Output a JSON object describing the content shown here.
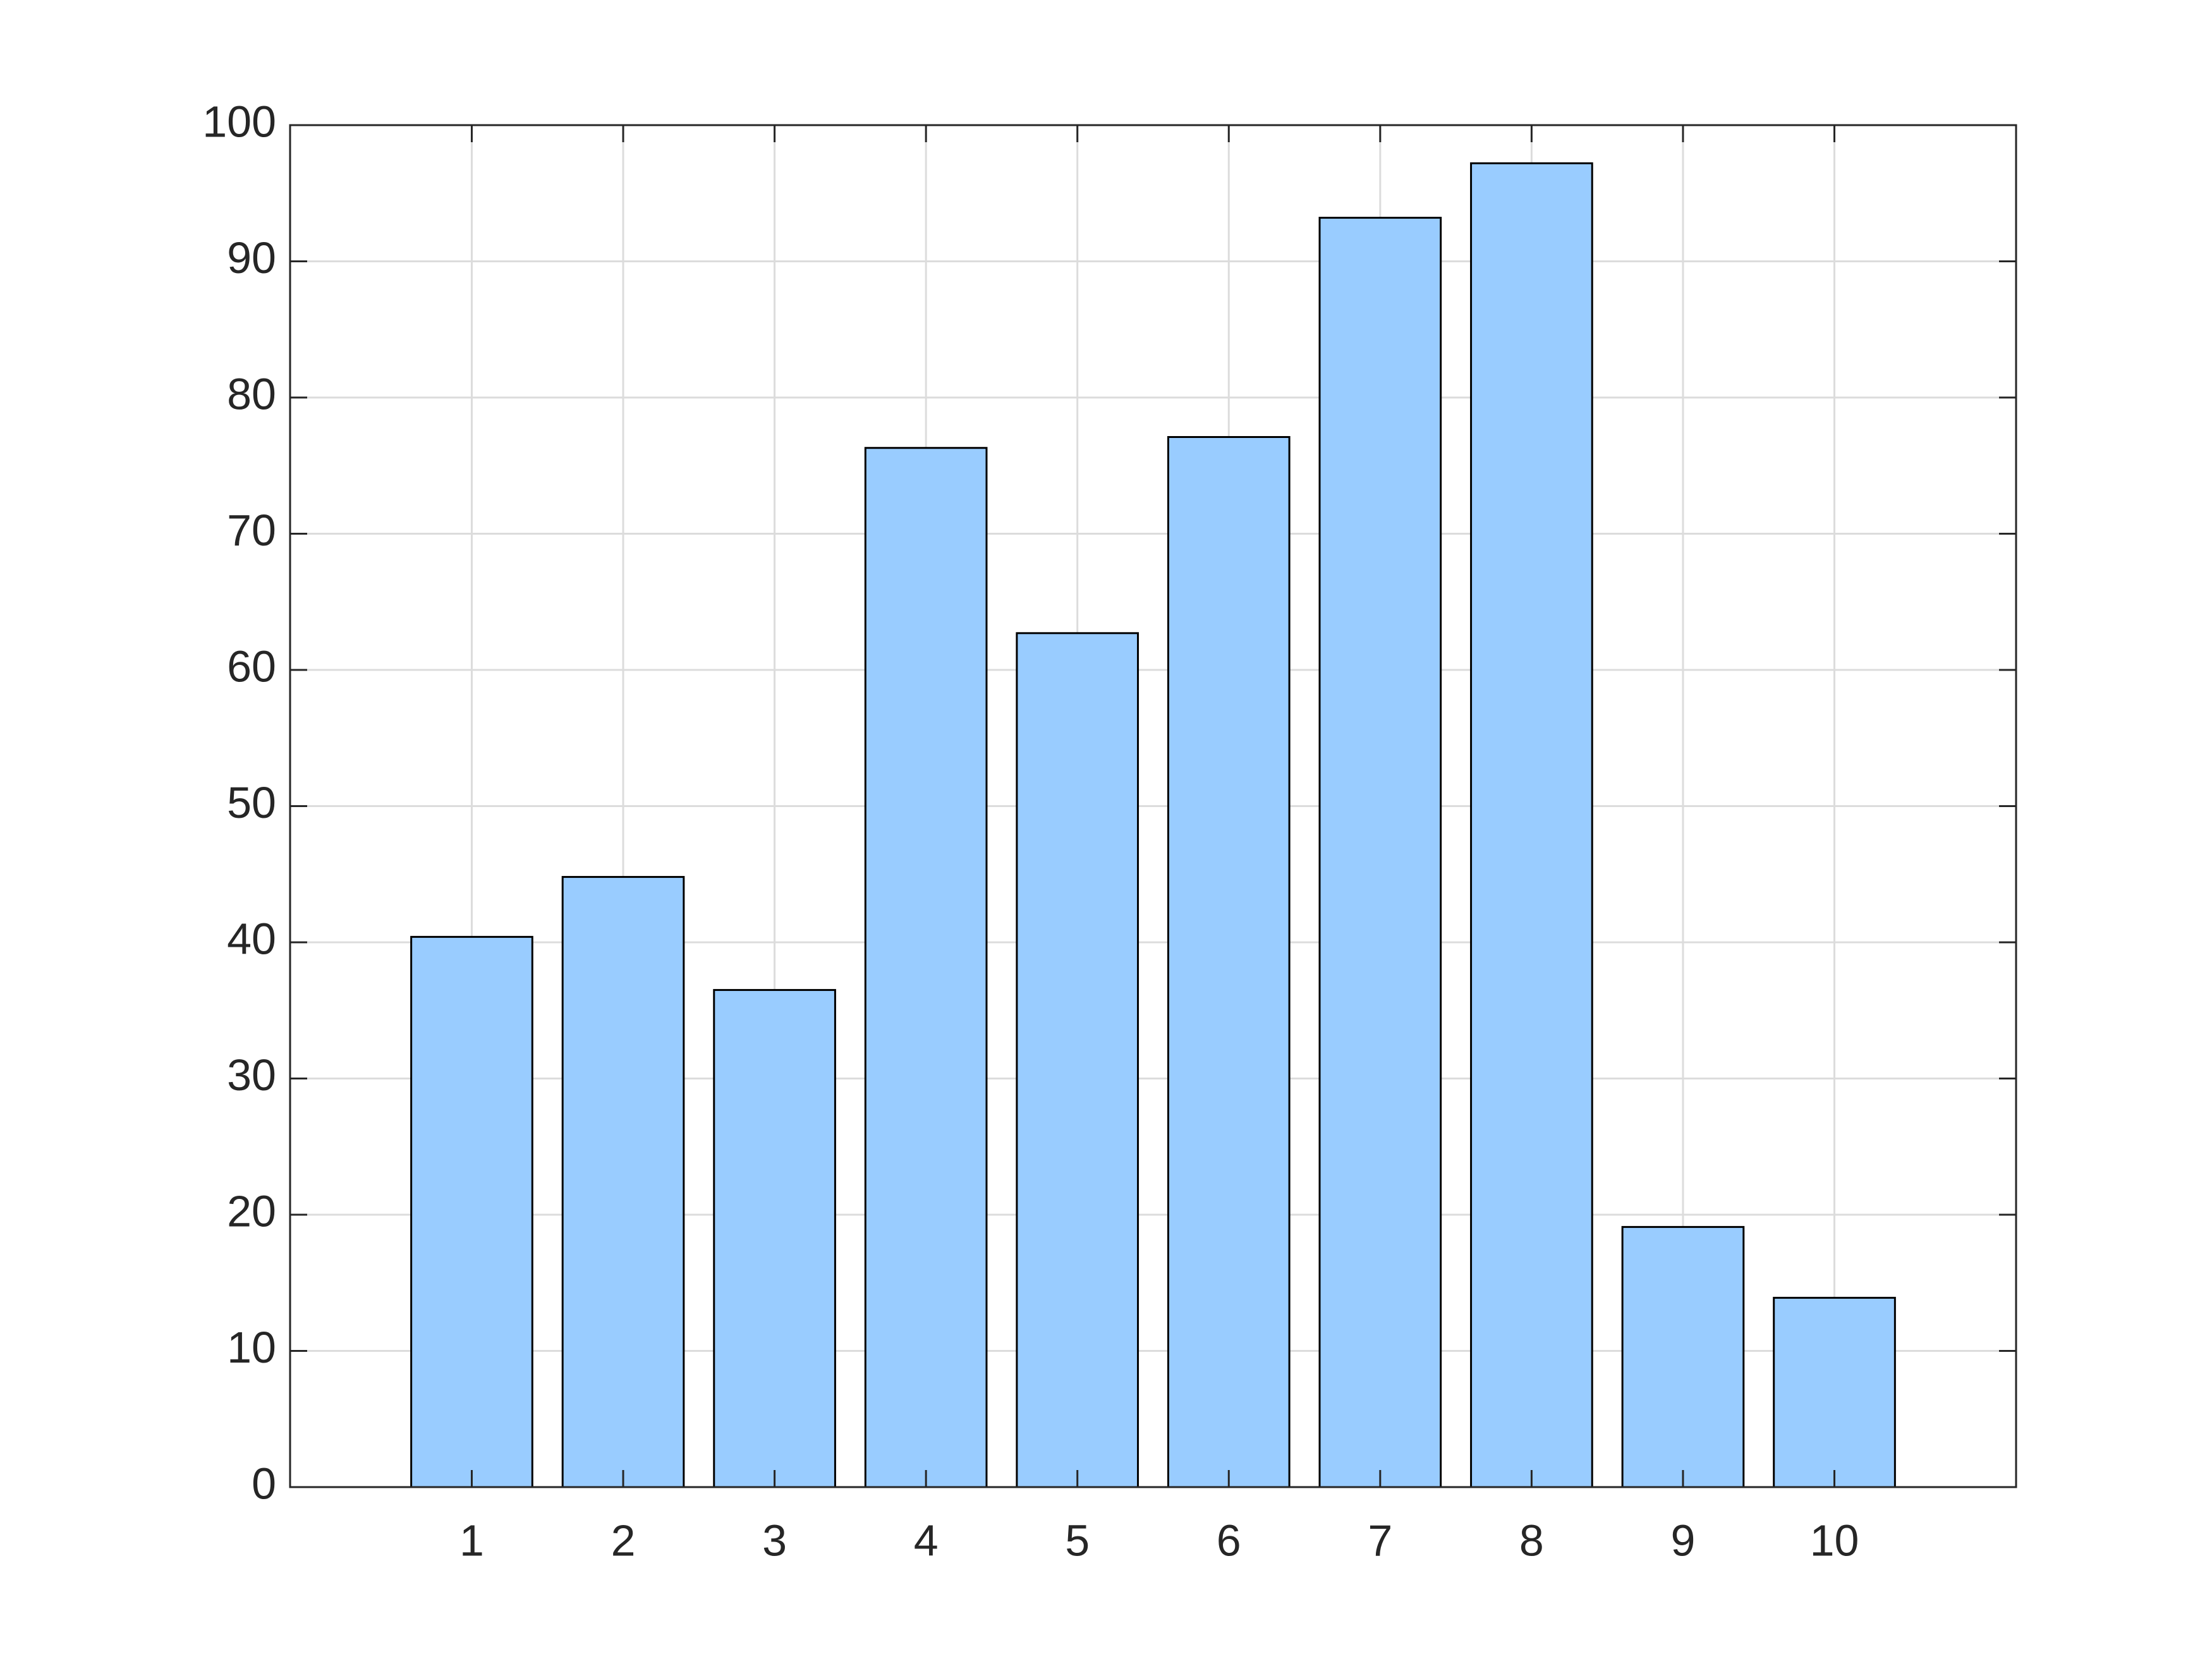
{
  "chart_data": {
    "type": "bar",
    "x": [
      1,
      2,
      3,
      4,
      5,
      6,
      7,
      8,
      9,
      10
    ],
    "values": [
      40.4,
      44.8,
      36.5,
      76.3,
      62.7,
      77.1,
      93.2,
      97.2,
      19.1,
      13.9
    ],
    "color": "#99ccff",
    "edge_color": "#000000",
    "bar_width": 0.8,
    "xlim": [
      -0.2,
      11.2
    ],
    "xticks": [
      1,
      2,
      3,
      4,
      5,
      6,
      7,
      8,
      9,
      10
    ],
    "ylim": [
      0,
      100
    ],
    "yticks": [
      0,
      10,
      20,
      30,
      40,
      50,
      60,
      70,
      80,
      90,
      100
    ],
    "grid": true
  }
}
